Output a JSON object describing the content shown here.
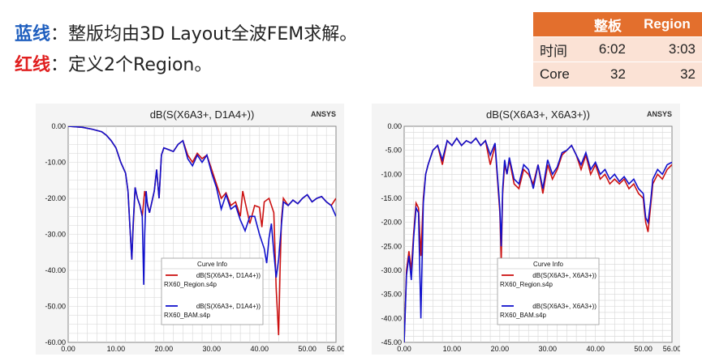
{
  "header": {
    "line1_key": "蓝线",
    "line1_colon": "：",
    "line1_text": "整版均由3D Layout全波FEM求解。",
    "line2_key": "红线",
    "line2_colon": "：",
    "line2_text": "定义2个Region。",
    "colors": {
      "blue_key": "#1f5fbf",
      "red_key": "#e02020"
    }
  },
  "compare_table": {
    "headers": [
      "",
      "整板",
      "Region"
    ],
    "rows": [
      [
        "时间",
        "6:02",
        "3:03"
      ],
      [
        "Core",
        "32",
        "32"
      ]
    ],
    "colors": {
      "header_bg": "#e36f2d",
      "cell_bg": "#fbe2d5"
    }
  },
  "chart_data": [
    {
      "type": "line",
      "title": "dB(S(X6A3+, D1A4+))",
      "brand": "ANSYS",
      "x_ticks": [
        "0.00",
        "10.00",
        "20.00",
        "30.00",
        "40.00",
        "50.00",
        "56.00"
      ],
      "y_ticks": [
        "0.00",
        "-10.00",
        "-20.00",
        "-30.00",
        "-40.00",
        "-50.00",
        "-60.00"
      ],
      "xlim": [
        0,
        56
      ],
      "ylim": [
        -60,
        0
      ],
      "grid": true,
      "legend_title": "Curve Info",
      "legend_placement": "bottom-center",
      "series": [
        {
          "name": "dB(S(X6A3+, D1A4+))",
          "file": "RX60_Region.s4p",
          "color": "#cc1111",
          "x": [
            0,
            3,
            5,
            7,
            8,
            9,
            10,
            11,
            12,
            12.5,
            13,
            13.3,
            13.6,
            14,
            14.5,
            15,
            15.5,
            16,
            16.5,
            17,
            18,
            18.5,
            19,
            19.5,
            20,
            21,
            22,
            23,
            24,
            25,
            26,
            27,
            28,
            29,
            30,
            31,
            32,
            33,
            34,
            35,
            36,
            36.5,
            37,
            38,
            39,
            40,
            40.5,
            41,
            42,
            43,
            43.5,
            44,
            44.3,
            44.6,
            45,
            46,
            47,
            48,
            49,
            50,
            51,
            52,
            53,
            54,
            55,
            56
          ],
          "y": [
            0,
            -0.3,
            -0.8,
            -1.5,
            -2.5,
            -4,
            -6,
            -10,
            -13,
            -18,
            -30,
            -37,
            -28,
            -17,
            -20,
            -22,
            -25,
            -18,
            -21,
            -24,
            -18,
            -12,
            -20,
            -8,
            -6,
            -6.5,
            -7,
            -5,
            -4,
            -8,
            -10,
            -7.5,
            -9,
            -8,
            -12,
            -16,
            -20,
            -18.5,
            -22,
            -21,
            -25,
            -18,
            -21,
            -27,
            -22,
            -22.5,
            -28,
            -21,
            -20,
            -24,
            -45,
            -58,
            -40,
            -26,
            -20,
            -22,
            -20.5,
            -21.5,
            -20,
            -19,
            -21,
            -20,
            -19.5,
            -21,
            -22,
            -20
          ]
        },
        {
          "name": "dB(S(X6A3+, D1A4+))",
          "file": "RX60_BAM.s4p",
          "color": "#1111cc",
          "x": [
            0,
            3,
            5,
            7,
            8,
            9,
            10,
            11,
            12,
            12.5,
            13,
            13.3,
            13.6,
            14,
            14.5,
            15,
            15.5,
            15.8,
            16,
            16.3,
            16.6,
            17,
            18,
            18.5,
            19,
            19.5,
            20,
            21,
            22,
            23,
            24,
            25,
            26,
            27,
            28,
            29,
            30,
            31,
            32,
            33,
            34,
            35,
            36,
            37,
            38,
            39,
            40,
            41,
            41.5,
            42,
            42.5,
            43,
            43.5,
            44,
            44.5,
            45,
            46,
            47,
            48,
            49,
            50,
            51,
            52,
            53,
            54,
            55,
            56
          ],
          "y": [
            0,
            -0.3,
            -0.8,
            -1.5,
            -2.5,
            -4,
            -6,
            -10,
            -13,
            -18,
            -30,
            -37,
            -27,
            -17,
            -20,
            -22,
            -25,
            -44,
            -30,
            -18,
            -22,
            -24,
            -18,
            -12,
            -20,
            -8,
            -6,
            -6.5,
            -7,
            -5,
            -4,
            -9,
            -11,
            -8,
            -10,
            -8,
            -13,
            -17,
            -23,
            -19,
            -23,
            -22,
            -26,
            -29,
            -25,
            -25,
            -30,
            -34,
            -38,
            -31,
            -27,
            -35,
            -42,
            -37,
            -29,
            -21,
            -22,
            -20.5,
            -21.5,
            -20,
            -19,
            -21,
            -20,
            -19.5,
            -21,
            -22,
            -25
          ]
        }
      ]
    },
    {
      "type": "line",
      "title": "dB(S(X6A3+, X6A3+))",
      "brand": "ANSYS",
      "x_ticks": [
        "0.00",
        "10.00",
        "20.00",
        "30.00",
        "40.00",
        "50.00",
        "56.00"
      ],
      "y_ticks": [
        "0.00",
        "-5.00",
        "-10.00",
        "-15.00",
        "-20.00",
        "-25.00",
        "-30.00",
        "-35.00",
        "-40.00",
        "-45.00"
      ],
      "xlim": [
        0,
        56
      ],
      "ylim": [
        -45,
        0
      ],
      "grid": true,
      "legend_title": "Curve Info",
      "legend_placement": "bottom-center",
      "series": [
        {
          "name": "dB(S(X6A3+, X6A3+))",
          "file": "RX60_Region.s4p",
          "color": "#cc1111",
          "x": [
            0,
            0.5,
            1,
            1.5,
            2,
            2.5,
            3,
            3.5,
            4,
            4.5,
            5,
            6,
            7,
            8,
            9,
            10,
            11,
            12,
            13,
            14,
            15,
            16,
            17,
            18,
            19,
            20,
            20.3,
            20.6,
            21,
            21.5,
            22,
            23,
            24,
            25,
            26,
            27,
            28,
            29,
            30,
            31,
            32,
            33,
            34,
            35,
            36,
            37,
            38,
            39,
            40,
            41,
            42,
            43,
            44,
            45,
            46,
            47,
            48,
            49,
            50,
            50.5,
            51,
            51.5,
            52,
            53,
            54,
            55,
            56
          ],
          "y": [
            -45,
            -30,
            -26,
            -30,
            -22,
            -16,
            -17,
            -27,
            -15,
            -10,
            -8,
            -5,
            -4,
            -8,
            -3,
            -4,
            -2.5,
            -4,
            -3,
            -3.5,
            -2.5,
            -4,
            -3,
            -8,
            -4,
            -18,
            -28,
            -14,
            -8,
            -10,
            -7,
            -12,
            -13,
            -9,
            -10,
            -12,
            -8,
            -14,
            -8,
            -11,
            -9,
            -6,
            -5,
            -4,
            -6,
            -9,
            -6,
            -10,
            -8,
            -11,
            -10,
            -12,
            -11,
            -12,
            -11,
            -13,
            -12,
            -14,
            -15,
            -20,
            -22,
            -17,
            -12,
            -10,
            -11,
            -9,
            -8
          ]
        },
        {
          "name": "dB(S(X6A3+, X6A3+))",
          "file": "RX60_BAM.s4p",
          "color": "#1111cc",
          "x": [
            0,
            0.5,
            1,
            1.5,
            2,
            2.5,
            3,
            3.5,
            4,
            4.5,
            5,
            6,
            7,
            8,
            9,
            10,
            11,
            12,
            13,
            14,
            15,
            16,
            17,
            18,
            19,
            20,
            20.3,
            20.6,
            21,
            21.5,
            22,
            23,
            24,
            25,
            26,
            27,
            28,
            29,
            30,
            31,
            32,
            33,
            34,
            35,
            36,
            37,
            38,
            39,
            40,
            41,
            42,
            43,
            44,
            45,
            46,
            47,
            48,
            49,
            50,
            50.5,
            51,
            51.5,
            52,
            53,
            54,
            55,
            56
          ],
          "y": [
            -45,
            -31,
            -27,
            -32,
            -23,
            -17,
            -18,
            -40,
            -16,
            -10,
            -8,
            -5,
            -4,
            -7,
            -3,
            -4,
            -2.5,
            -4,
            -3,
            -3.5,
            -2.5,
            -4,
            -3,
            -6,
            -3.5,
            -17,
            -25,
            -13,
            -7,
            -10,
            -6.5,
            -11,
            -12,
            -8,
            -9,
            -13,
            -8,
            -13,
            -7,
            -10,
            -8.5,
            -5.5,
            -5,
            -4,
            -6,
            -8,
            -5.5,
            -9,
            -7.5,
            -10,
            -9,
            -11,
            -10,
            -11.5,
            -10.5,
            -12,
            -11,
            -13,
            -14,
            -19,
            -20,
            -16,
            -11,
            -9,
            -10,
            -8,
            -7.5
          ]
        }
      ]
    }
  ]
}
